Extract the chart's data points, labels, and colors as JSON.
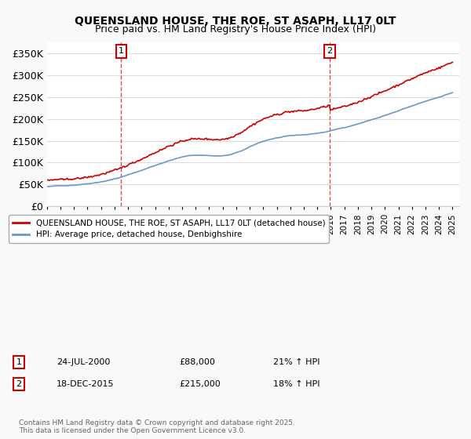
{
  "title": "QUEENSLAND HOUSE, THE ROE, ST ASAPH, LL17 0LT",
  "subtitle": "Price paid vs. HM Land Registry's House Price Index (HPI)",
  "ylabel": "",
  "ylim": [
    0,
    375000
  ],
  "yticks": [
    0,
    50000,
    100000,
    150000,
    200000,
    250000,
    300000,
    350000
  ],
  "ytick_labels": [
    "£0",
    "£50K",
    "£100K",
    "£150K",
    "£200K",
    "£250K",
    "£300K",
    "£350K"
  ],
  "background_color": "#f9f9f9",
  "plot_bg_color": "#ffffff",
  "grid_color": "#dddddd",
  "house_color": "#cc0000",
  "hpi_color": "#6699cc",
  "legend_house": "QUEENSLAND HOUSE, THE ROE, ST ASAPH, LL17 0LT (detached house)",
  "legend_hpi": "HPI: Average price, detached house, Denbighshire",
  "marker1_date_idx": 67,
  "marker1_label": "1",
  "marker1_date": "24-JUL-2000",
  "marker1_price": "£88,000",
  "marker1_hpi": "21% ↑ HPI",
  "marker2_date_idx": 244,
  "marker2_label": "2",
  "marker2_date": "18-DEC-2015",
  "marker2_price": "£215,000",
  "marker2_hpi": "18% ↑ HPI",
  "footer": "Contains HM Land Registry data © Crown copyright and database right 2025.\nThis data is licensed under the Open Government Licence v3.0."
}
